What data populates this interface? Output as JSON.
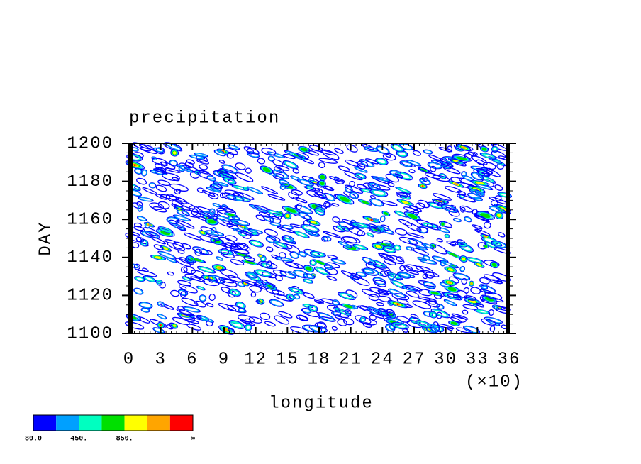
{
  "chart_data": {
    "type": "contour",
    "title": "precipitation",
    "x_label": "longitude",
    "x_multiplier": "(×10)",
    "y_label": "DAY",
    "xlim": [
      0,
      36
    ],
    "xticks": [
      0,
      3,
      6,
      9,
      12,
      15,
      18,
      21,
      24,
      27,
      30,
      33,
      36
    ],
    "ylim": [
      1100,
      1200
    ],
    "yticks": [
      1100,
      1120,
      1140,
      1160,
      1180,
      1200
    ],
    "colorbar": {
      "colors": [
        "#0000ff",
        "#00a0ff",
        "#00ffc0",
        "#00e000",
        "#ffff00",
        "#ffa500",
        "#ff0000"
      ],
      "levels": [
        {
          "value": 80,
          "label": "80.0"
        },
        null,
        {
          "value": 450,
          "label": "450."
        },
        null,
        {
          "value": 850,
          "label": "850."
        },
        null,
        null,
        "∞"
      ]
    }
  }
}
